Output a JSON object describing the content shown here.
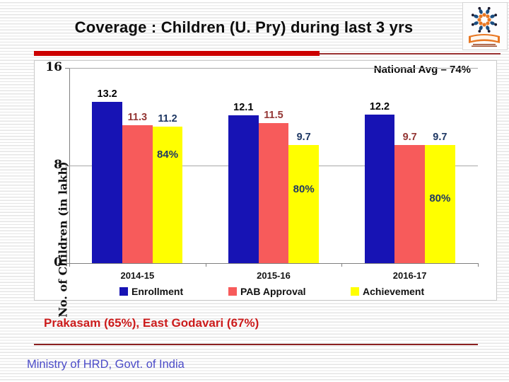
{
  "slide": {
    "title": "Coverage : Children (U. Pry) during last 3 yrs",
    "footnote": "Prakasam (65%), East Godavari (67%)",
    "footer": "Ministry of HRD, Govt. of India"
  },
  "chart_data": {
    "type": "bar",
    "title": "",
    "xlabel": "",
    "ylabel": "No. of Children (in lakh)",
    "ylim": [
      0,
      16
    ],
    "yticks": [
      0,
      8,
      16
    ],
    "grid": true,
    "legend_position": "bottom",
    "annotation": "National Avg – 74%",
    "categories": [
      "2014-15",
      "2015-16",
      "2016-17"
    ],
    "series": [
      {
        "name": "Enrollment",
        "color": "#1713b4",
        "label_color": "#000000",
        "values": [
          13.2,
          12.1,
          12.2
        ]
      },
      {
        "name": "PAB Approval",
        "color": "#f75b5b",
        "label_color": "#943634",
        "values": [
          11.3,
          11.5,
          9.7
        ]
      },
      {
        "name": "Achievement",
        "color": "#ffff00",
        "label_color": "#1f3864",
        "values": [
          11.2,
          9.7,
          9.7
        ]
      }
    ],
    "percent_labels": {
      "on_series": "Achievement",
      "color": "#1f3864",
      "values": [
        "84%",
        "80%",
        "80%"
      ]
    }
  },
  "colors": {
    "divider_red": "#cc0000",
    "divider_line": "#9c3434",
    "footnote_red": "#cc1c1c",
    "underline_red": "#8b2020",
    "ministry_blue": "#4b4bc8"
  }
}
